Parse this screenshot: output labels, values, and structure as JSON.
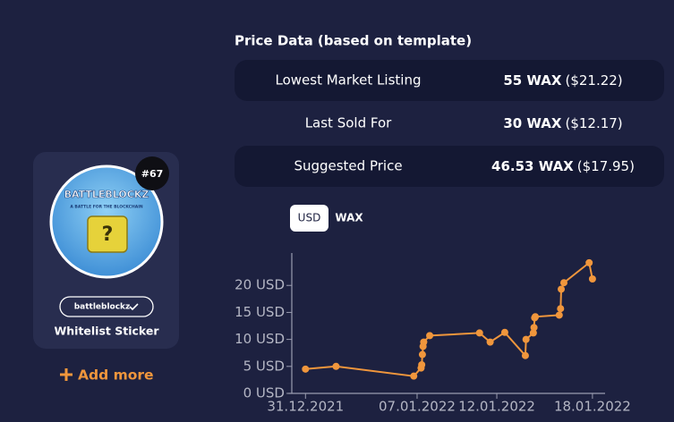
{
  "card": {
    "badge": "#67",
    "image_title": "BATTLEBLOCKZ",
    "image_subtitle": "A BATTLE FOR THE BLOCKCHAIN",
    "collection": "battleblockz",
    "name": "Whitelist Sticker"
  },
  "add_more": "Add more",
  "price_data": {
    "title": "Price Data (based on template)",
    "rows": [
      {
        "label": "Lowest Market Listing",
        "wax": "55 WAX",
        "usd": "($21.22)"
      },
      {
        "label": "Last Sold For",
        "wax": "30 WAX",
        "usd": "($12.17)"
      },
      {
        "label": "Suggested Price",
        "wax": "46.53 WAX",
        "usd": "($17.95)"
      }
    ]
  },
  "toggle": [
    "USD",
    "WAX"
  ],
  "chart_data": {
    "type": "line",
    "color": "#f0963c",
    "x": [
      "2021-12-31T00:00",
      "2022-01-01T22:00",
      "2022-01-06T19:00",
      "2022-01-07T06:00",
      "2022-01-07T07:00",
      "2022-01-07T08:00",
      "2022-01-07T09:00",
      "2022-01-07T10:00",
      "2022-01-07T19:00",
      "2022-01-10T22:00",
      "2022-01-11T14:00",
      "2022-01-12T12:00",
      "2022-01-13T19:00",
      "2022-01-13T20:00",
      "2022-01-14T07:00",
      "2022-01-14T08:00",
      "2022-01-14T09:00",
      "2022-01-14T10:00",
      "2022-01-15T22:00",
      "2022-01-16T00:00",
      "2022-01-16T01:00",
      "2022-01-16T05:00",
      "2022-01-17T19:00",
      "2022-01-18T00:00"
    ],
    "values": [
      4.5,
      5.0,
      3.2,
      4.7,
      5.3,
      7.2,
      8.7,
      9.5,
      10.7,
      11.2,
      9.5,
      11.3,
      7.0,
      10.0,
      11.2,
      12.2,
      14.0,
      14.2,
      14.5,
      15.7,
      19.3,
      20.5,
      24.2,
      21.2
    ],
    "xlim": [
      "2021-12-29T22:00",
      "2022-01-18T19:00"
    ],
    "xticks": [
      {
        "value": "2021-12-31T00:00",
        "label": "31.12.2021"
      },
      {
        "value": "2022-01-07T00:00",
        "label": "07.01.2022"
      },
      {
        "value": "2022-01-12T00:00",
        "label": "12.01.2022"
      },
      {
        "value": "2022-01-18T00:00",
        "label": "18.01.2022"
      }
    ],
    "ylim": [
      0,
      26
    ],
    "yticks": [
      {
        "value": 0,
        "label": "0 USD"
      },
      {
        "value": 5,
        "label": "5 USD"
      },
      {
        "value": 10,
        "label": "10 USD"
      },
      {
        "value": 15,
        "label": "15 USD"
      },
      {
        "value": 20,
        "label": "20 USD"
      }
    ]
  }
}
